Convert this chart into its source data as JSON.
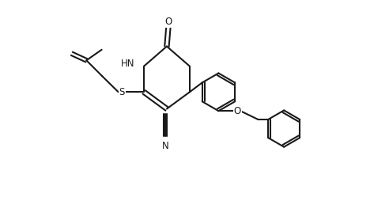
{
  "bg_color": "#ffffff",
  "line_color": "#1a1a1a",
  "line_width": 1.5,
  "font_size_label": 8.5,
  "figsize": [
    4.92,
    2.54
  ],
  "dpi": 100,
  "xlim": [
    0,
    9.84
  ],
  "ylim": [
    0,
    5.08
  ]
}
